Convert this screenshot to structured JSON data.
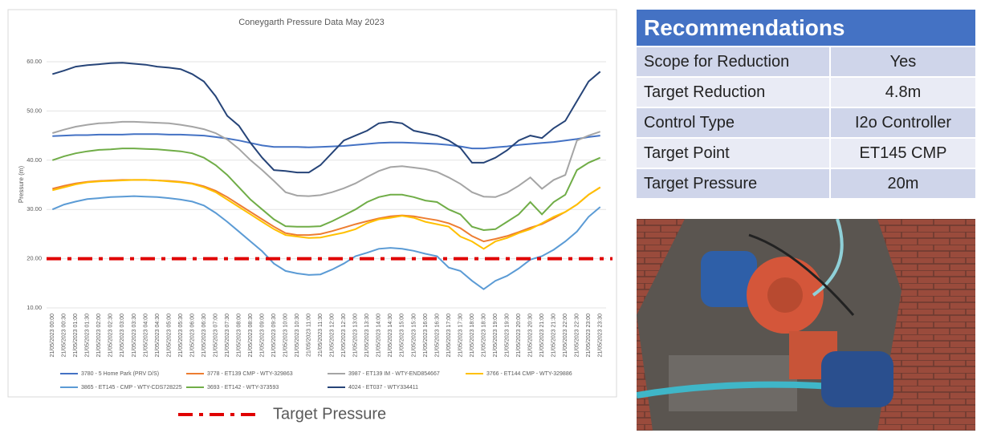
{
  "chart_data": {
    "type": "line",
    "title": "Coneygarth Pressure Data May 2023",
    "y_label": "Pressure (m)",
    "categories": [
      "21/05/2023 00:00",
      "21/05/2023 00:30",
      "21/05/2023 01:00",
      "21/05/2023 01:30",
      "21/05/2023 02:00",
      "21/05/2023 02:30",
      "21/05/2023 03:00",
      "21/05/2023 03:30",
      "21/05/2023 04:00",
      "21/05/2023 04:30",
      "21/05/2023 05:00",
      "21/05/2023 05:30",
      "21/05/2023 06:00",
      "21/05/2023 06:30",
      "21/05/2023 07:00",
      "21/05/2023 07:30",
      "21/05/2023 08:00",
      "21/05/2023 08:30",
      "21/05/2023 09:00",
      "21/05/2023 09:30",
      "21/05/2023 10:00",
      "21/05/2023 10:30",
      "21/05/2023 11:00",
      "21/05/2023 11:30",
      "21/05/2023 12:00",
      "21/05/2023 12:30",
      "21/05/2023 13:00",
      "21/05/2023 13:30",
      "21/05/2023 14:00",
      "21/05/2023 14:30",
      "21/05/2023 15:00",
      "21/05/2023 15:30",
      "21/05/2023 16:00",
      "21/05/2023 16:30",
      "21/05/2023 17:00",
      "21/05/2023 17:30",
      "21/05/2023 18:00",
      "21/05/2023 18:30",
      "21/05/2023 19:00",
      "21/05/2023 19:30",
      "21/05/2023 20:00",
      "21/05/2023 20:30",
      "21/05/2023 21:00",
      "21/05/2023 21:30",
      "21/05/2023 22:00",
      "21/05/2023 22:30",
      "21/05/2023 23:00",
      "21/05/2023 23:30"
    ],
    "series": [
      {
        "name": "3780 - 5 Home Park (PRV D/S)",
        "color": "#4472c4",
        "values": [
          44.9,
          45.0,
          45.1,
          45.1,
          45.2,
          45.2,
          45.2,
          45.3,
          45.3,
          45.3,
          45.2,
          45.2,
          45.1,
          45.0,
          44.7,
          44.4,
          44.0,
          43.5,
          43.0,
          42.7,
          42.7,
          42.7,
          42.6,
          42.7,
          42.8,
          42.9,
          43.1,
          43.3,
          43.5,
          43.6,
          43.6,
          43.5,
          43.4,
          43.3,
          43.1,
          42.8,
          42.4,
          42.4,
          42.6,
          42.8,
          43.1,
          43.3,
          43.5,
          43.7,
          44.0,
          44.3,
          44.7,
          45.0
        ]
      },
      {
        "name": "3778 - ET139 CMP - WTY-329863",
        "color": "#ed7d31",
        "values": [
          34.2,
          34.8,
          35.3,
          35.6,
          35.8,
          35.9,
          36.0,
          36.0,
          36.0,
          35.9,
          35.8,
          35.6,
          35.3,
          34.7,
          33.8,
          32.5,
          31.0,
          29.5,
          28.0,
          26.5,
          25.2,
          24.8,
          24.8,
          25.0,
          25.6,
          26.3,
          27.0,
          27.6,
          28.2,
          28.6,
          28.8,
          28.6,
          28.2,
          27.8,
          27.2,
          26.2,
          24.6,
          23.5,
          24.0,
          24.6,
          25.4,
          26.3,
          27.0,
          28.2,
          29.5,
          31.0,
          33.0,
          34.5
        ]
      },
      {
        "name": "3987 - ET139 IM - WTY-END854667",
        "color": "#a5a5a5",
        "values": [
          45.5,
          46.2,
          46.8,
          47.2,
          47.5,
          47.6,
          47.8,
          47.8,
          47.7,
          47.6,
          47.5,
          47.2,
          46.8,
          46.3,
          45.5,
          44.2,
          42.3,
          40.0,
          38.0,
          35.8,
          33.5,
          32.8,
          32.7,
          32.9,
          33.5,
          34.3,
          35.3,
          36.6,
          37.8,
          38.6,
          38.8,
          38.5,
          38.2,
          37.6,
          36.5,
          35.2,
          33.5,
          32.6,
          32.5,
          33.4,
          34.8,
          36.5,
          34.2,
          36.0,
          37.0,
          44.0,
          45.0,
          45.8
        ]
      },
      {
        "name": "3766 - ET144 CMP - WTY-329886",
        "color": "#ffc000",
        "values": [
          33.9,
          34.5,
          35.1,
          35.5,
          35.7,
          35.8,
          35.9,
          36.0,
          36.0,
          35.9,
          35.7,
          35.5,
          35.2,
          34.5,
          33.5,
          32.0,
          30.5,
          29.0,
          27.5,
          26.0,
          24.8,
          24.5,
          24.2,
          24.3,
          24.8,
          25.3,
          26.0,
          27.2,
          28.0,
          28.3,
          28.7,
          28.3,
          27.5,
          27.0,
          26.5,
          24.5,
          23.5,
          22.0,
          23.5,
          24.2,
          25.2,
          26.0,
          27.2,
          28.5,
          29.5,
          31.0,
          33.0,
          34.5
        ]
      },
      {
        "name": "3865 - ET145 - CMP - WTY-CDS728225",
        "color": "#5b9bd5",
        "values": [
          30.0,
          31.0,
          31.6,
          32.1,
          32.3,
          32.5,
          32.6,
          32.7,
          32.6,
          32.5,
          32.3,
          32.0,
          31.6,
          30.8,
          29.3,
          27.5,
          25.5,
          23.5,
          21.5,
          19.0,
          17.5,
          17.0,
          16.7,
          16.8,
          17.8,
          19.0,
          20.5,
          21.2,
          22.0,
          22.2,
          22.0,
          21.6,
          21.0,
          20.5,
          18.2,
          17.5,
          15.5,
          13.8,
          15.5,
          16.5,
          18.0,
          19.8,
          20.5,
          21.8,
          23.5,
          25.5,
          28.5,
          30.5
        ]
      },
      {
        "name": "3693 - ET142 - WTY-373593",
        "color": "#70ad47",
        "values": [
          40.0,
          40.8,
          41.4,
          41.8,
          42.1,
          42.2,
          42.4,
          42.4,
          42.3,
          42.2,
          42.0,
          41.8,
          41.4,
          40.5,
          39.0,
          37.0,
          34.5,
          32.0,
          30.0,
          28.0,
          26.6,
          26.5,
          26.5,
          26.6,
          27.6,
          28.8,
          30.0,
          31.5,
          32.5,
          33.0,
          33.0,
          32.5,
          31.8,
          31.5,
          30.0,
          29.0,
          26.5,
          25.8,
          26.0,
          27.5,
          29.0,
          31.5,
          29.0,
          31.5,
          33.0,
          38.0,
          39.5,
          40.5
        ]
      },
      {
        "name": "4024 - ET037 - WTY334411",
        "color": "#264478",
        "values": [
          57.5,
          58.2,
          59.0,
          59.3,
          59.5,
          59.7,
          59.8,
          59.6,
          59.4,
          59.0,
          58.8,
          58.5,
          57.5,
          56.0,
          53.0,
          49.0,
          47.0,
          43.5,
          40.5,
          38.0,
          37.8,
          37.5,
          37.5,
          39.0,
          41.5,
          44.0,
          45.0,
          46.0,
          47.5,
          47.8,
          47.5,
          46.0,
          45.5,
          45.0,
          44.0,
          42.5,
          39.5,
          39.5,
          40.5,
          42.0,
          44.0,
          45.0,
          44.5,
          46.5,
          48.0,
          52.0,
          56.0,
          58.0
        ]
      }
    ],
    "target_line": {
      "value": 20,
      "label": "Target Pressure",
      "color": "#e00000"
    },
    "ylim": [
      10,
      60
    ],
    "yticks": [
      {
        "value": 10,
        "label": "10.00"
      },
      {
        "value": 20,
        "label": "20.00"
      },
      {
        "value": 30,
        "label": "30.00"
      },
      {
        "value": 40,
        "label": "40.00"
      },
      {
        "value": 50,
        "label": "50.00"
      },
      {
        "value": 60,
        "label": "60.00"
      }
    ],
    "grid": true
  },
  "recommendations": {
    "title": "Recommendations",
    "rows": [
      [
        "Scope for Reduction",
        "Yes"
      ],
      [
        "Target Reduction",
        "4.8m"
      ],
      [
        "Control Type",
        "I2o Controller"
      ],
      [
        "Target Point",
        "ET145 CMP"
      ],
      [
        "Target Pressure",
        "20m"
      ]
    ]
  }
}
